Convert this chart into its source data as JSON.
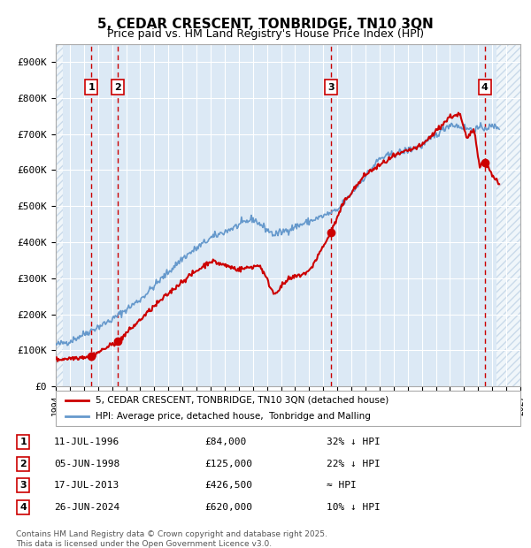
{
  "title": "5, CEDAR CRESCENT, TONBRIDGE, TN10 3QN",
  "subtitle": "Price paid vs. HM Land Registry's House Price Index (HPI)",
  "title_fontsize": 11,
  "subtitle_fontsize": 9,
  "xlim": [
    1994.0,
    2027.0
  ],
  "ylim": [
    0,
    950000
  ],
  "yticks": [
    0,
    100000,
    200000,
    300000,
    400000,
    500000,
    600000,
    700000,
    800000,
    900000
  ],
  "ytick_labels": [
    "£0",
    "£100K",
    "£200K",
    "£300K",
    "£400K",
    "£500K",
    "£600K",
    "£700K",
    "£800K",
    "£900K"
  ],
  "xticks": [
    1994,
    1995,
    1996,
    1997,
    1998,
    1999,
    2000,
    2001,
    2002,
    2003,
    2004,
    2005,
    2006,
    2007,
    2008,
    2009,
    2010,
    2011,
    2012,
    2013,
    2014,
    2015,
    2016,
    2017,
    2018,
    2019,
    2020,
    2021,
    2022,
    2023,
    2024,
    2025,
    2026,
    2027
  ],
  "background_color": "#ffffff",
  "plot_bg_color": "#dce9f5",
  "grid_color": "#ffffff",
  "hatch_color": "#b0c8e0",
  "red_line_color": "#cc0000",
  "blue_line_color": "#6699cc",
  "sale_markers": [
    {
      "year": 1996.53,
      "price": 84000,
      "label": "1"
    },
    {
      "year": 1998.43,
      "price": 125000,
      "label": "2"
    },
    {
      "year": 2013.54,
      "price": 426500,
      "label": "3"
    },
    {
      "year": 2024.48,
      "price": 620000,
      "label": "4"
    }
  ],
  "vline_color": "#cc0000",
  "legend_entries": [
    "5, CEDAR CRESCENT, TONBRIDGE, TN10 3QN (detached house)",
    "HPI: Average price, detached house,  Tonbridge and Malling"
  ],
  "table_rows": [
    {
      "num": "1",
      "date": "11-JUL-1996",
      "price": "£84,000",
      "note": "32% ↓ HPI"
    },
    {
      "num": "2",
      "date": "05-JUN-1998",
      "price": "£125,000",
      "note": "22% ↓ HPI"
    },
    {
      "num": "3",
      "date": "17-JUL-2013",
      "price": "£426,500",
      "note": "≈ HPI"
    },
    {
      "num": "4",
      "date": "26-JUN-2024",
      "price": "£620,000",
      "note": "10% ↓ HPI"
    }
  ],
  "footer": "Contains HM Land Registry data © Crown copyright and database right 2025.\nThis data is licensed under the Open Government Licence v3.0."
}
